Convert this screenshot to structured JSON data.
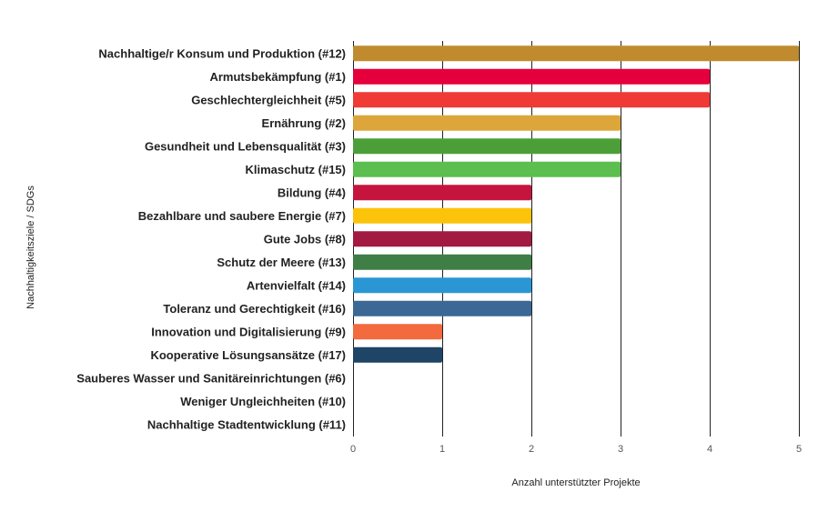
{
  "chart_data": {
    "type": "bar",
    "orientation": "horizontal",
    "xlabel": "Anzahl unterstützter Projekte",
    "ylabel": "Nachhaltigkeitsziele / SDGs",
    "xlim": [
      0,
      5
    ],
    "xticks": [
      0,
      1,
      2,
      3,
      4,
      5
    ],
    "grid": true,
    "categories": [
      "Nachhaltige/r Konsum und Produktion (#12)",
      "Armutsbekämpfung (#1)",
      "Geschlechtergleichheit (#5)",
      "Ernährung (#2)",
      "Gesundheit und Lebensqualität (#3)",
      "Klimaschutz (#15)",
      "Bildung (#4)",
      "Bezahlbare und saubere Energie (#7)",
      "Gute Jobs (#8)",
      "Schutz der Meere (#13)",
      "Artenvielfalt (#14)",
      "Toleranz und Gerechtigkeit (#16)",
      "Innovation und Digitalisierung (#9)",
      "Kooperative Lösungsansätze (#17)",
      "Sauberes Wasser und Sanitäreinrichtungen (#6)",
      "Weniger Ungleichheiten (#10)",
      "Nachhaltige Stadtentwicklung (#11)"
    ],
    "values": [
      5,
      4,
      4,
      3,
      3,
      3,
      2,
      2,
      2,
      2,
      2,
      2,
      1,
      1,
      0,
      0,
      0
    ],
    "colors": [
      "#BF8B2E",
      "#E5003D",
      "#EF3A36",
      "#DDA63A",
      "#4C9F38",
      "#5CBE4E",
      "#C5153F",
      "#FCC30B",
      "#A21942",
      "#3F7E44",
      "#2A97D4",
      "#3B6895",
      "#F26A3E",
      "#1E4466",
      "#26BDE2",
      "#DD1367",
      "#FD9D24"
    ]
  }
}
